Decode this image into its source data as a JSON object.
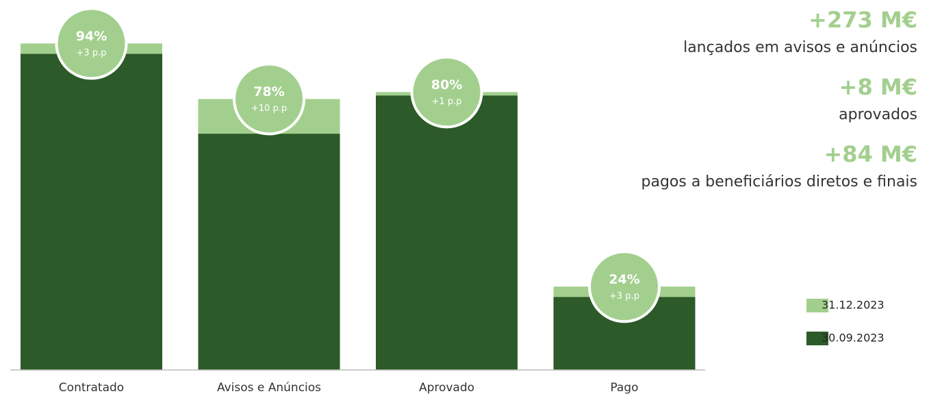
{
  "chart_data": {
    "type": "bar",
    "categories": [
      "Contratado",
      "Avisos e Anúncios",
      "Aprovado",
      "Pago"
    ],
    "series": [
      {
        "name": "31.12.2023",
        "color": "#a3cf8e",
        "values": [
          94,
          78,
          80,
          24
        ],
        "value_labels": [
          "94%",
          "78%",
          "80%",
          "24%"
        ]
      },
      {
        "name": "30.09.2023",
        "color": "#2c5a28",
        "values": [
          91,
          68,
          79,
          21
        ]
      }
    ],
    "changes": {
      "values": [
        3,
        10,
        1,
        3
      ],
      "value_labels": [
        "+3 p.p",
        "+10 p.p",
        "+1 p.p",
        "+3 p.p"
      ]
    },
    "annotations": [
      {
        "value": "+273 M€",
        "text": "lançados em avisos e anúncios"
      },
      {
        "value": "+8 M€",
        "text": "aprovados"
      },
      {
        "value": "+84 M€",
        "text": "pagos a beneficiários diretos e finais"
      }
    ]
  }
}
